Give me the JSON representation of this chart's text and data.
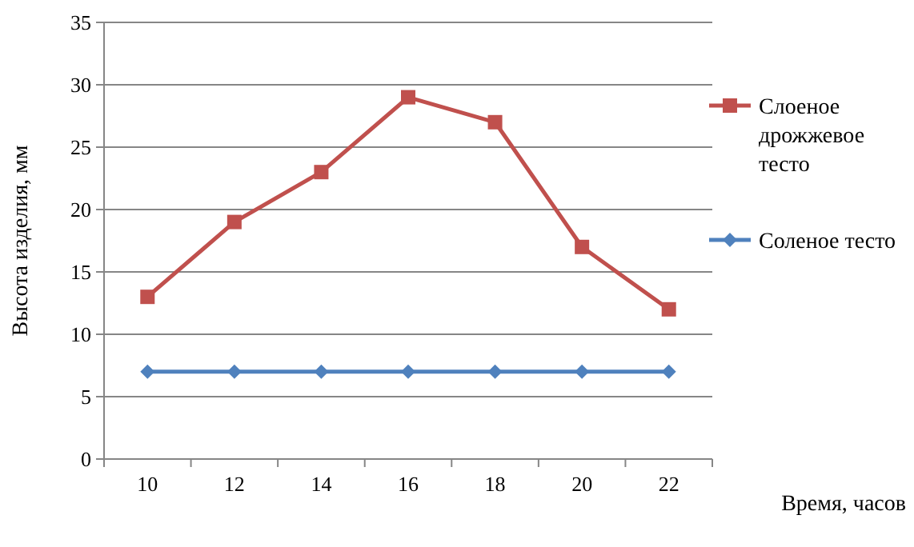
{
  "chart_data": {
    "type": "line",
    "xlabel": "Время, часов",
    "ylabel": "Высота изделия, мм",
    "categories": [
      "10",
      "12",
      "14",
      "16",
      "18",
      "20",
      "22"
    ],
    "series": [
      {
        "name": "Слоеное дрожжевое тесто",
        "color": "#c0504d",
        "marker": "square",
        "values": [
          13,
          19,
          23,
          29,
          27,
          17,
          12
        ]
      },
      {
        "name": "Соленое тесто",
        "color": "#4f81bd",
        "marker": "diamond",
        "values": [
          7,
          7,
          7,
          7,
          7,
          7,
          7
        ]
      }
    ],
    "ylim": [
      0,
      35
    ],
    "yticks": [
      0,
      5,
      10,
      15,
      20,
      25,
      30,
      35
    ],
    "grid": "y",
    "legend": "right"
  }
}
